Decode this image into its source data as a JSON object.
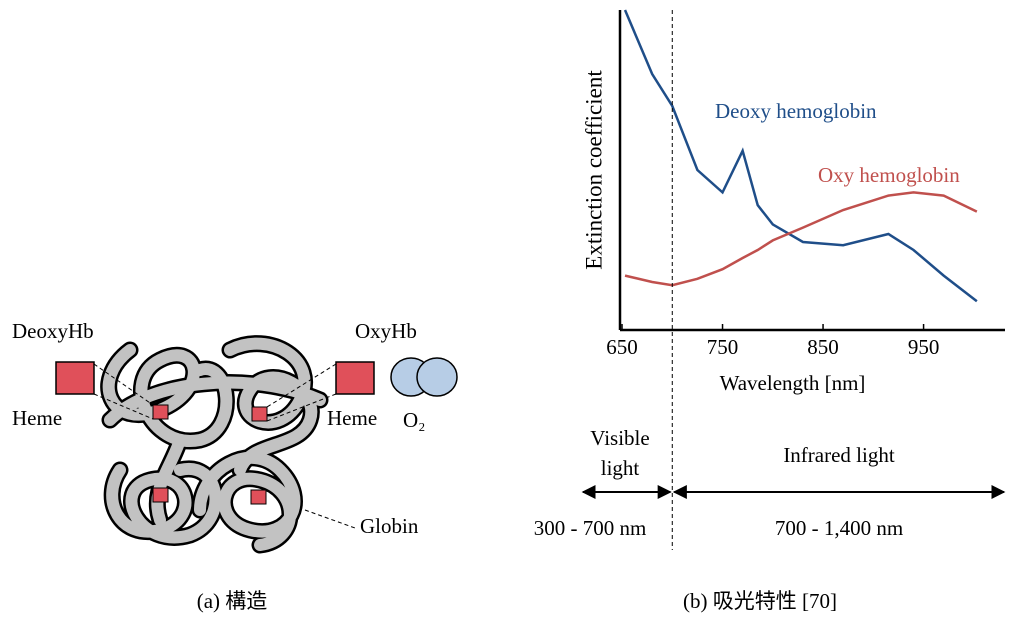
{
  "diagram": {
    "labels": {
      "deoxyhb": "DeoxyHb",
      "heme_left": "Heme",
      "oxyhb": "OxyHb",
      "heme_right": "Heme",
      "o2": "O₂",
      "globin": "Globin"
    },
    "caption": "(a) 構造"
  },
  "chart_data": {
    "type": "line",
    "ylabel": "Extinction coefficient",
    "xlabel": "Wavelength [nm]",
    "x": [
      653,
      680,
      700,
      725,
      750,
      770,
      785,
      800,
      830,
      870,
      915,
      940,
      970,
      1003
    ],
    "series": [
      {
        "name": "Deoxy hemoglobin",
        "color": "#1f4e89",
        "values": [
          100,
          80,
          70,
          50,
          43,
          56,
          39,
          33,
          27.5,
          26.5,
          30,
          25,
          17,
          9
        ]
      },
      {
        "name": "Oxy hemoglobin",
        "color": "#c0504d",
        "values": [
          17,
          15,
          14,
          16,
          19,
          22.5,
          25,
          28,
          32,
          37.5,
          42,
          43,
          42,
          37
        ]
      }
    ],
    "xlim": [
      648,
      1031
    ],
    "ylim": [
      0,
      100
    ],
    "xticks": [
      650,
      750,
      850,
      950
    ],
    "boundary": 700,
    "regions": [
      {
        "label": "Visible light",
        "range": "300 - 700 nm"
      },
      {
        "label": "Infrared light",
        "range": "700 - 1,400 nm"
      }
    ],
    "caption": "(b) 吸光特性 [70]"
  }
}
